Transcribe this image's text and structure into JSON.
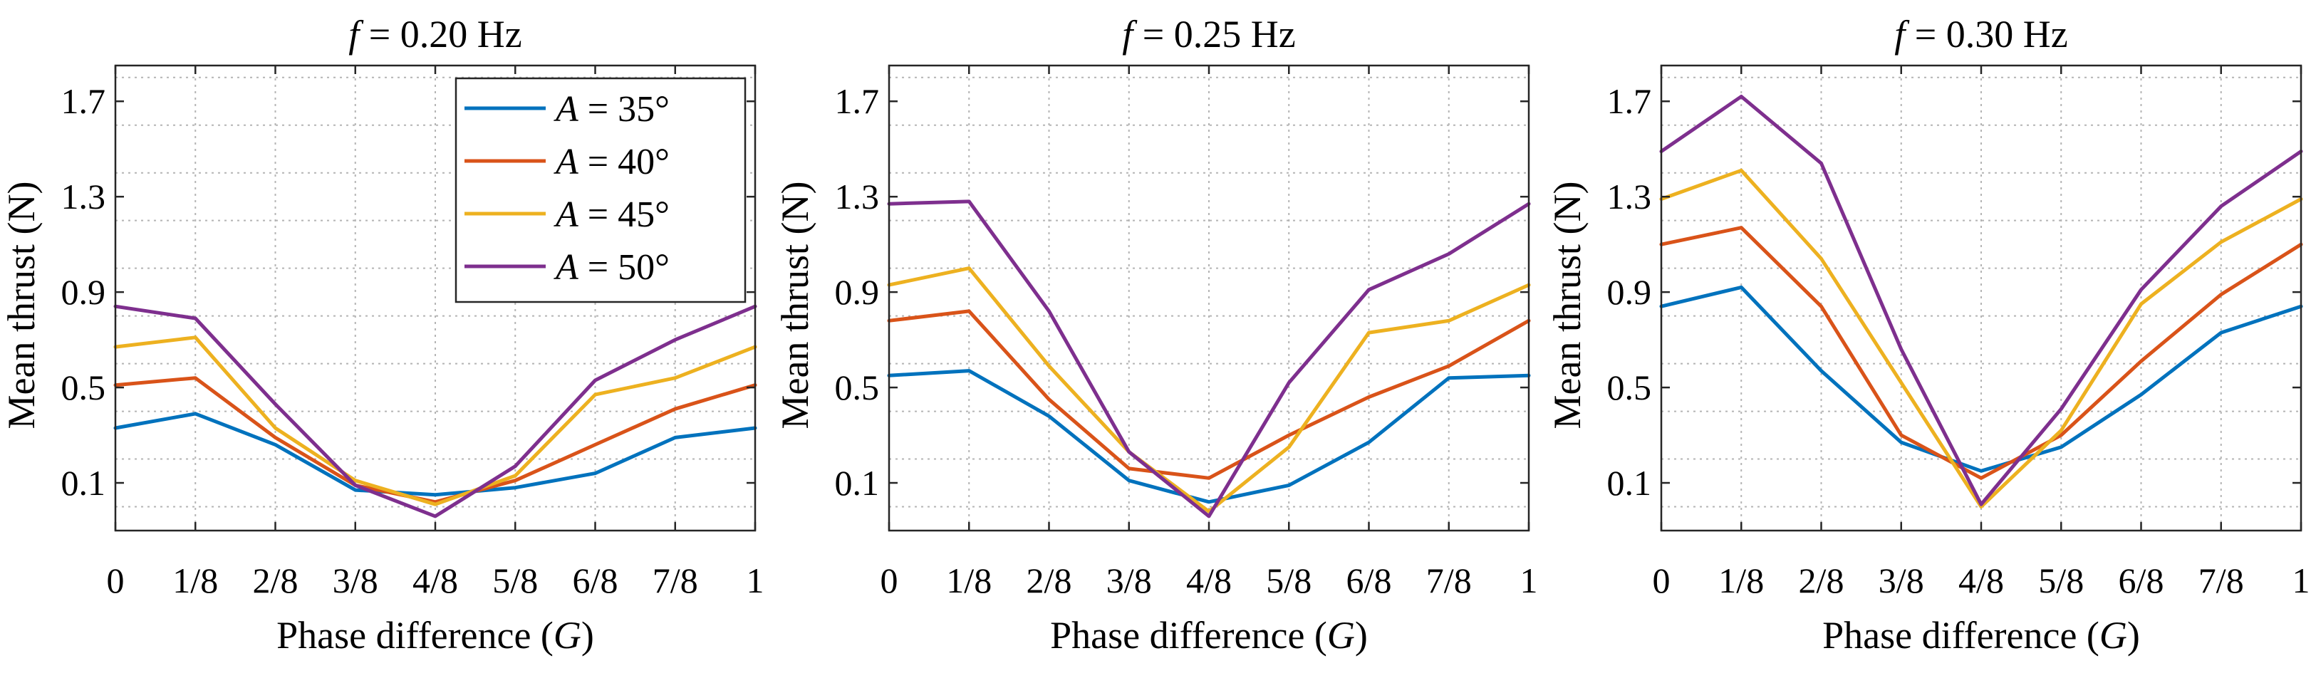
{
  "chart_data": [
    {
      "type": "line",
      "title_prefix": "f",
      "title_value": " = 0.20 Hz",
      "xlabel": "Phase difference (",
      "xlabel_var": "G",
      "xlabel_close": ")",
      "ylabel": "Mean thrust (N)",
      "categories": [
        "0",
        "1/8",
        "2/8",
        "3/8",
        "4/8",
        "5/8",
        "6/8",
        "7/8",
        "1"
      ],
      "ylim": [
        -0.1,
        1.85
      ],
      "yticks": [
        "0.1",
        "0.5",
        "0.9",
        "1.3",
        "1.7"
      ],
      "grid": true,
      "legend": {
        "placement": "top-right",
        "entries": [
          {
            "var": "A",
            "text": " = 35°"
          },
          {
            "var": "A",
            "text": " = 40°"
          },
          {
            "var": "A",
            "text": " = 45°"
          },
          {
            "var": "A",
            "text": " = 50°"
          }
        ]
      },
      "series": [
        {
          "name": "A = 35°",
          "color": "#0072BD",
          "values": [
            0.33,
            0.39,
            0.26,
            0.07,
            0.05,
            0.08,
            0.14,
            0.29,
            0.33
          ]
        },
        {
          "name": "A = 40°",
          "color": "#D95319",
          "values": [
            0.51,
            0.54,
            0.29,
            0.09,
            0.02,
            0.11,
            0.26,
            0.41,
            0.51
          ]
        },
        {
          "name": "A = 45°",
          "color": "#EDB120",
          "values": [
            0.67,
            0.71,
            0.33,
            0.11,
            0.01,
            0.13,
            0.47,
            0.54,
            0.67
          ]
        },
        {
          "name": "A = 50°",
          "color": "#7E2F8E",
          "values": [
            0.84,
            0.79,
            0.43,
            0.09,
            -0.04,
            0.17,
            0.53,
            0.7,
            0.84
          ]
        }
      ]
    },
    {
      "type": "line",
      "title_prefix": "f",
      "title_value": " = 0.25 Hz",
      "xlabel": "Phase difference (",
      "xlabel_var": "G",
      "xlabel_close": ")",
      "ylabel": "Mean thrust (N)",
      "categories": [
        "0",
        "1/8",
        "2/8",
        "3/8",
        "4/8",
        "5/8",
        "6/8",
        "7/8",
        "1"
      ],
      "ylim": [
        -0.1,
        1.85
      ],
      "yticks": [
        "0.1",
        "0.5",
        "0.9",
        "1.3",
        "1.7"
      ],
      "grid": true,
      "series": [
        {
          "name": "A = 35°",
          "color": "#0072BD",
          "values": [
            0.55,
            0.57,
            0.38,
            0.11,
            0.02,
            0.09,
            0.27,
            0.54,
            0.55
          ]
        },
        {
          "name": "A = 40°",
          "color": "#D95319",
          "values": [
            0.78,
            0.82,
            0.45,
            0.16,
            0.12,
            0.3,
            0.46,
            0.59,
            0.78
          ]
        },
        {
          "name": "A = 45°",
          "color": "#EDB120",
          "values": [
            0.93,
            1.0,
            0.59,
            0.23,
            -0.02,
            0.25,
            0.73,
            0.78,
            0.93
          ]
        },
        {
          "name": "A = 50°",
          "color": "#7E2F8E",
          "values": [
            1.27,
            1.28,
            0.82,
            0.23,
            -0.04,
            0.52,
            0.91,
            1.06,
            1.27
          ]
        }
      ]
    },
    {
      "type": "line",
      "title_prefix": "f",
      "title_value": " = 0.30 Hz",
      "xlabel": "Phase difference (",
      "xlabel_var": "G",
      "xlabel_close": ")",
      "ylabel": "Mean thrust (N)",
      "categories": [
        "0",
        "1/8",
        "2/8",
        "3/8",
        "4/8",
        "5/8",
        "6/8",
        "7/8",
        "1"
      ],
      "ylim": [
        -0.1,
        1.85
      ],
      "yticks": [
        "0.1",
        "0.5",
        "0.9",
        "1.3",
        "1.7"
      ],
      "grid": true,
      "series": [
        {
          "name": "A = 35°",
          "color": "#0072BD",
          "values": [
            0.84,
            0.92,
            0.57,
            0.27,
            0.15,
            0.25,
            0.47,
            0.73,
            0.84
          ]
        },
        {
          "name": "A = 40°",
          "color": "#D95319",
          "values": [
            1.1,
            1.17,
            0.84,
            0.3,
            0.12,
            0.3,
            0.61,
            0.89,
            1.1
          ]
        },
        {
          "name": "A = 45°",
          "color": "#EDB120",
          "values": [
            1.29,
            1.41,
            1.04,
            0.52,
            0.0,
            0.32,
            0.85,
            1.11,
            1.29
          ]
        },
        {
          "name": "A = 50°",
          "color": "#7E2F8E",
          "values": [
            1.49,
            1.72,
            1.44,
            0.66,
            0.01,
            0.41,
            0.91,
            1.26,
            1.49
          ]
        }
      ]
    }
  ]
}
